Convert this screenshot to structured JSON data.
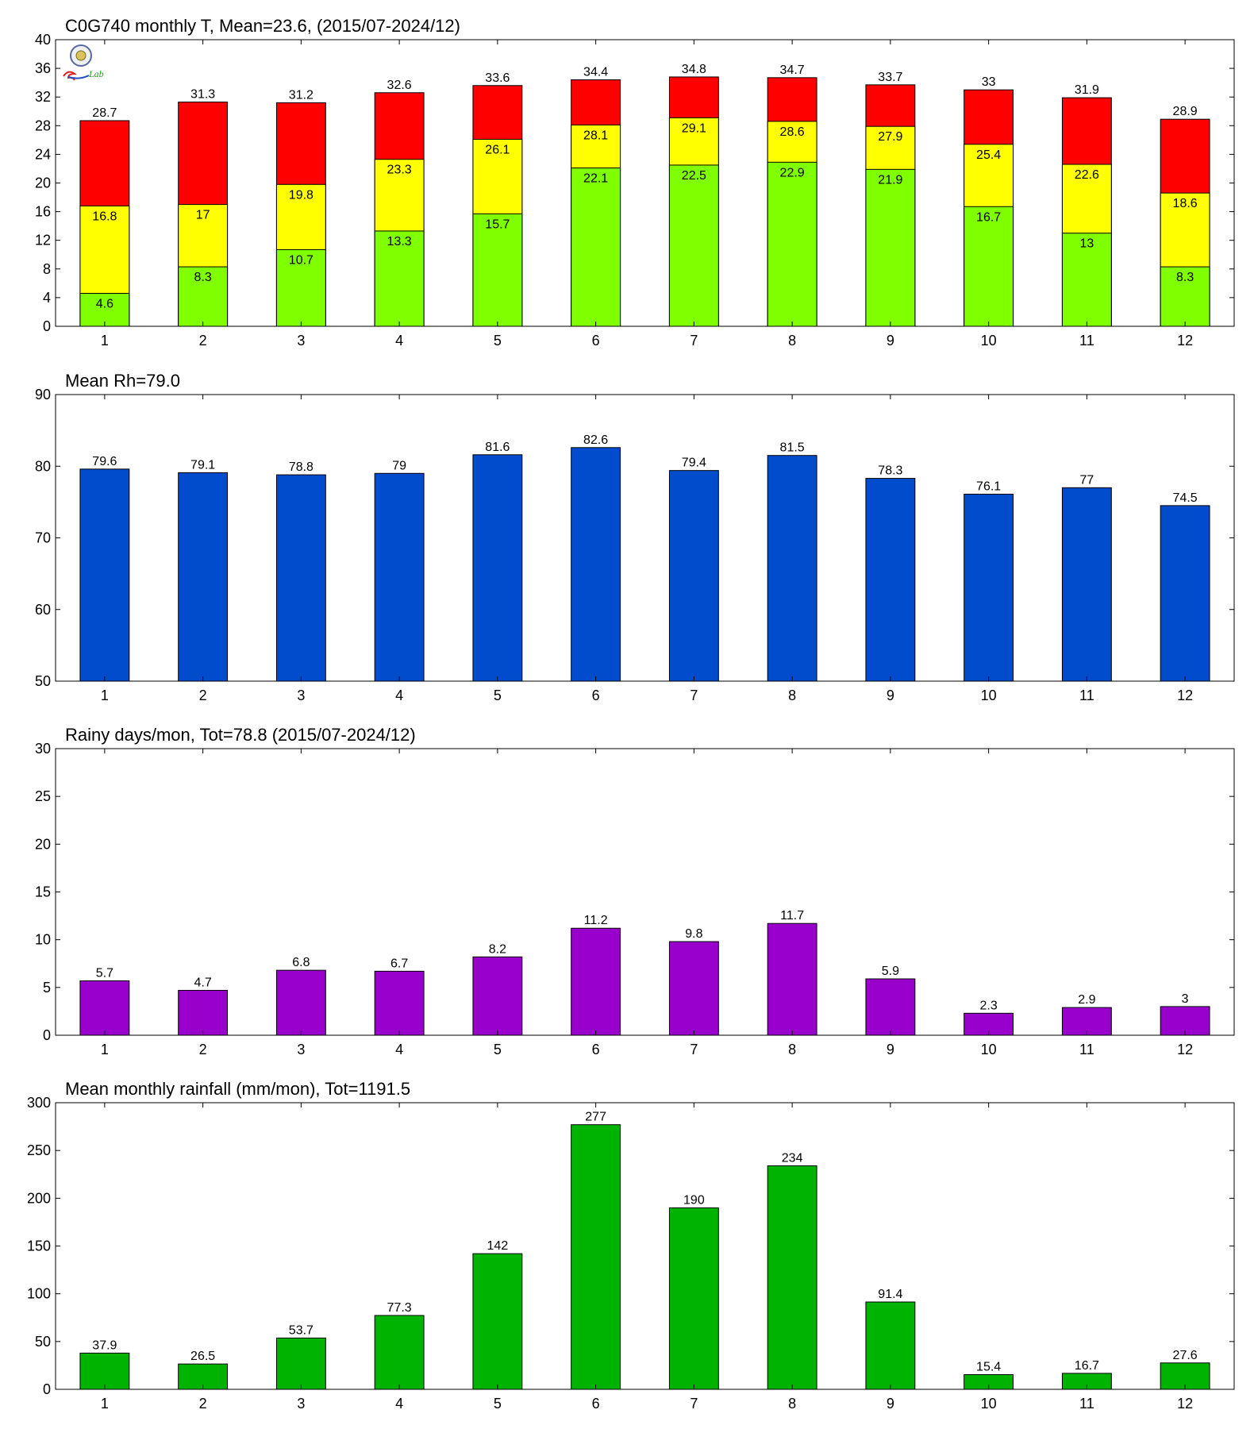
{
  "chart_data": [
    {
      "type": "bar",
      "title": "C0G740 monthly T, Mean=23.6, (2015/07-2024/12)",
      "categories": [
        "1",
        "2",
        "3",
        "4",
        "5",
        "6",
        "7",
        "8",
        "9",
        "10",
        "11",
        "12"
      ],
      "ylim": [
        0,
        40
      ],
      "yticks": [
        0,
        4,
        8,
        12,
        16,
        20,
        24,
        28,
        32,
        36,
        40
      ],
      "stacked_levels": true,
      "series": [
        {
          "color": "#ff0000",
          "values": [
            28.7,
            31.3,
            31.2,
            32.6,
            33.6,
            34.4,
            34.8,
            34.7,
            33.7,
            33,
            31.9,
            28.9
          ]
        },
        {
          "color": "#ffff00",
          "values": [
            16.8,
            17,
            19.8,
            23.3,
            26.1,
            28.1,
            29.1,
            28.6,
            27.9,
            25.4,
            22.6,
            18.6
          ]
        },
        {
          "color": "#80ff00",
          "values": [
            4.6,
            8.3,
            10.7,
            13.3,
            15.7,
            22.1,
            22.5,
            22.9,
            21.9,
            16.7,
            13,
            8.3
          ]
        }
      ],
      "logo": {
        "name": "station-logo-icon",
        "text": "Lab"
      }
    },
    {
      "type": "bar",
      "title": "Mean Rh=79.0",
      "categories": [
        "1",
        "2",
        "3",
        "4",
        "5",
        "6",
        "7",
        "8",
        "9",
        "10",
        "11",
        "12"
      ],
      "ylim": [
        50,
        90
      ],
      "yticks": [
        50,
        60,
        70,
        80,
        90
      ],
      "series": [
        {
          "color": "#004ccc",
          "values": [
            79.6,
            79.1,
            78.8,
            79,
            81.6,
            82.6,
            79.4,
            81.5,
            78.3,
            76.1,
            77,
            74.5
          ]
        }
      ]
    },
    {
      "type": "bar",
      "title": "Rainy days/mon, Tot=78.8 (2015/07-2024/12)",
      "categories": [
        "1",
        "2",
        "3",
        "4",
        "5",
        "6",
        "7",
        "8",
        "9",
        "10",
        "11",
        "12"
      ],
      "ylim": [
        0,
        30
      ],
      "yticks": [
        0,
        5,
        10,
        15,
        20,
        25,
        30
      ],
      "series": [
        {
          "color": "#9900cc",
          "values": [
            5.7,
            4.7,
            6.8,
            6.7,
            8.2,
            11.2,
            9.8,
            11.7,
            5.9,
            2.3,
            2.9,
            3
          ]
        }
      ]
    },
    {
      "type": "bar",
      "title": "Mean monthly rainfall (mm/mon), Tot=1191.5",
      "categories": [
        "1",
        "2",
        "3",
        "4",
        "5",
        "6",
        "7",
        "8",
        "9",
        "10",
        "11",
        "12"
      ],
      "ylim": [
        0,
        300
      ],
      "yticks": [
        0,
        50,
        100,
        150,
        200,
        250,
        300
      ],
      "series": [
        {
          "color": "#00b300",
          "values": [
            37.9,
            26.5,
            53.7,
            77.3,
            142,
            277,
            190,
            234,
            91.4,
            15.4,
            16.7,
            27.6
          ]
        }
      ]
    }
  ]
}
